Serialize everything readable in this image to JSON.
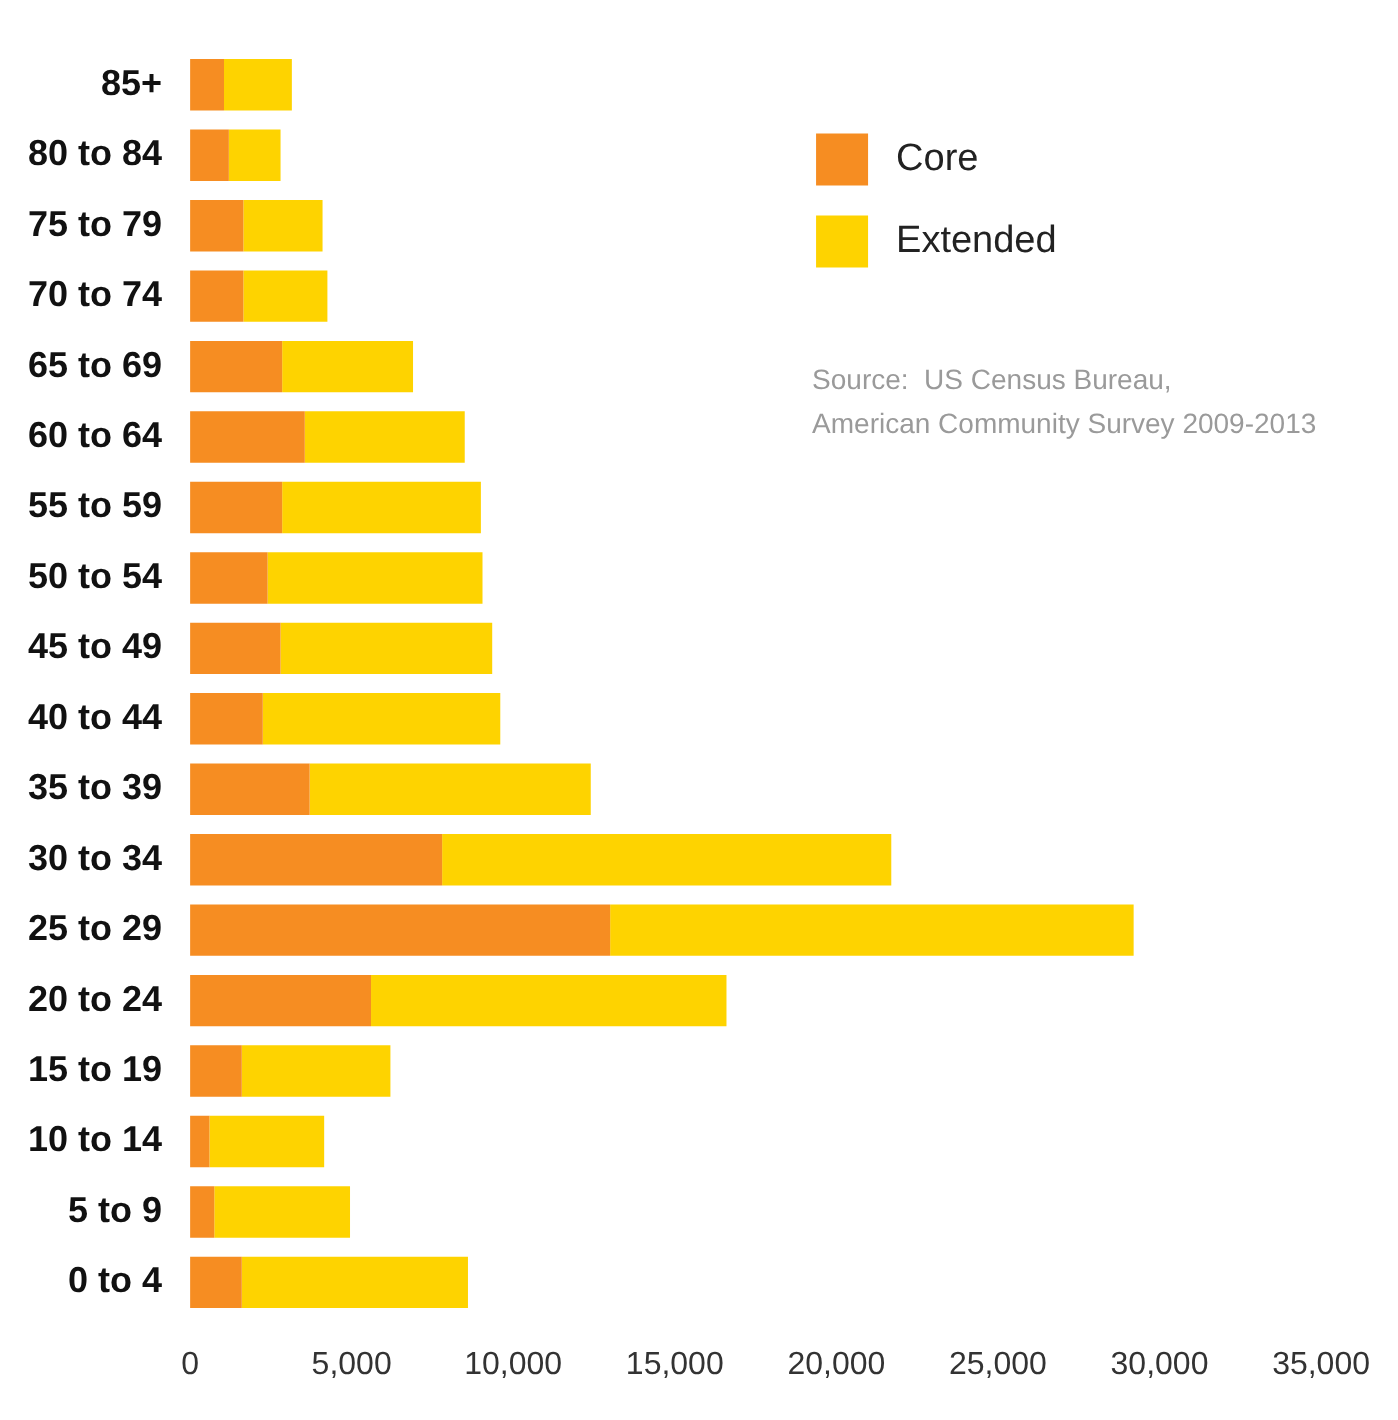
{
  "chart_data": {
    "type": "bar",
    "orientation": "horizontal",
    "stacked": true,
    "categories": [
      "85+",
      "80 to 84",
      "75 to 79",
      "70 to 74",
      "65 to 69",
      "60 to 64",
      "55 to 59",
      "50 to 54",
      "45 to 49",
      "40 to 44",
      "35 to 39",
      "30 to 34",
      "25 to 29",
      "20 to 24",
      "15 to 19",
      "10 to 14",
      "5 to 9",
      "0 to 4"
    ],
    "series": [
      {
        "name": "Core",
        "color": "#f68d22",
        "values": [
          1050,
          1200,
          1650,
          1650,
          2850,
          3550,
          2850,
          2400,
          2800,
          2250,
          3700,
          7800,
          13000,
          5600,
          1600,
          600,
          750,
          1600
        ]
      },
      {
        "name": "Extended",
        "color": "#fed300",
        "values": [
          2100,
          1600,
          2450,
          2600,
          4050,
          4950,
          6150,
          6650,
          6550,
          7350,
          8700,
          13900,
          16200,
          11000,
          4600,
          3550,
          4200,
          7000
        ]
      }
    ],
    "xlim": [
      0,
      35000
    ],
    "xticks": [
      {
        "value": 0,
        "label": "0"
      },
      {
        "value": 5000,
        "label": "5,000"
      },
      {
        "value": 10000,
        "label": "10,000"
      },
      {
        "value": 15000,
        "label": "15,000"
      },
      {
        "value": 20000,
        "label": "20,000"
      },
      {
        "value": 25000,
        "label": "25,000"
      },
      {
        "value": 30000,
        "label": "30,000"
      },
      {
        "value": 35000,
        "label": "35,000"
      }
    ],
    "grid": false,
    "legend": "top right",
    "annotations": [
      "Source:  US Census Bureau,\nAmerican Community Survey 2009-2013"
    ]
  }
}
